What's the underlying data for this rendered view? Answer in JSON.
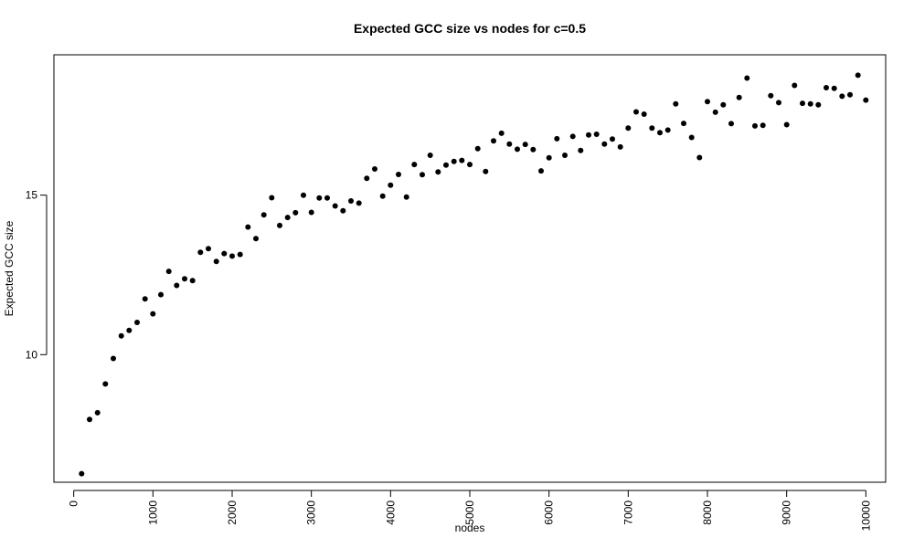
{
  "chart_data": {
    "type": "scatter",
    "title": "Expected GCC size vs nodes for c=0.5",
    "xlabel": "nodes",
    "ylabel": "Expected GCC size",
    "xlim": [
      -250,
      10250
    ],
    "ylim": [
      6.0,
      19.4
    ],
    "xticks": [
      0,
      1000,
      2000,
      3000,
      4000,
      5000,
      6000,
      7000,
      8000,
      9000,
      10000
    ],
    "xtick_labels": [
      "0",
      "1000",
      "2000",
      "3000",
      "4000",
      "5000",
      "6000",
      "7000",
      "8000",
      "9000",
      "10000"
    ],
    "xtick_rotation": "vertical",
    "yticks": [
      10,
      15
    ],
    "ytick_labels": [
      "10",
      "15"
    ],
    "grid": false,
    "legend": "none",
    "marker": "filled-circle",
    "marker_color": "#000000",
    "x": [
      100,
      200,
      300,
      400,
      500,
      600,
      700,
      800,
      900,
      1000,
      1100,
      1200,
      1300,
      1400,
      1500,
      1600,
      1700,
      1800,
      1900,
      2000,
      2100,
      2200,
      2300,
      2400,
      2500,
      2600,
      2700,
      2800,
      2900,
      3000,
      3100,
      3200,
      3300,
      3400,
      3500,
      3600,
      3700,
      3800,
      3900,
      4000,
      4100,
      4200,
      4300,
      4400,
      4500,
      4600,
      4700,
      4800,
      4900,
      5000,
      5100,
      5200,
      5300,
      5400,
      5500,
      5600,
      5700,
      5800,
      5900,
      6000,
      6100,
      6200,
      6300,
      6400,
      6500,
      6600,
      6700,
      6800,
      6900,
      7000,
      7100,
      7200,
      7300,
      7400,
      7500,
      7600,
      7700,
      7800,
      7900,
      8000,
      8100,
      8200,
      8300,
      8400,
      8500,
      8600,
      8700,
      8800,
      8900,
      9000,
      9100,
      9200,
      9300,
      9400,
      9500,
      9600,
      9700,
      9800,
      9900,
      10000
    ],
    "y": [
      6.27,
      7.97,
      8.18,
      9.08,
      9.88,
      10.59,
      10.76,
      11.01,
      11.75,
      11.28,
      11.88,
      12.61,
      12.17,
      12.38,
      12.32,
      13.21,
      13.32,
      12.92,
      13.17,
      13.09,
      13.14,
      14.0,
      13.64,
      14.38,
      14.92,
      14.05,
      14.3,
      14.45,
      15.0,
      14.46,
      14.91,
      14.91,
      14.66,
      14.51,
      14.82,
      14.75,
      15.53,
      15.82,
      14.97,
      15.31,
      15.65,
      14.94,
      15.96,
      15.64,
      16.25,
      15.73,
      15.94,
      16.06,
      16.09,
      15.96,
      16.46,
      15.74,
      16.7,
      16.94,
      16.6,
      16.44,
      16.59,
      16.43,
      15.76,
      16.17,
      16.77,
      16.25,
      16.84,
      16.4,
      16.89,
      16.91,
      16.6,
      16.76,
      16.51,
      17.1,
      17.61,
      17.54,
      17.1,
      16.96,
      17.04,
      17.86,
      17.25,
      16.81,
      16.18,
      17.93,
      17.6,
      17.83,
      17.24,
      18.06,
      18.67,
      17.17,
      17.19,
      18.12,
      17.9,
      17.21,
      18.44,
      17.88,
      17.86,
      17.83,
      18.37,
      18.35,
      18.1,
      18.15,
      18.76,
      17.98
    ]
  }
}
